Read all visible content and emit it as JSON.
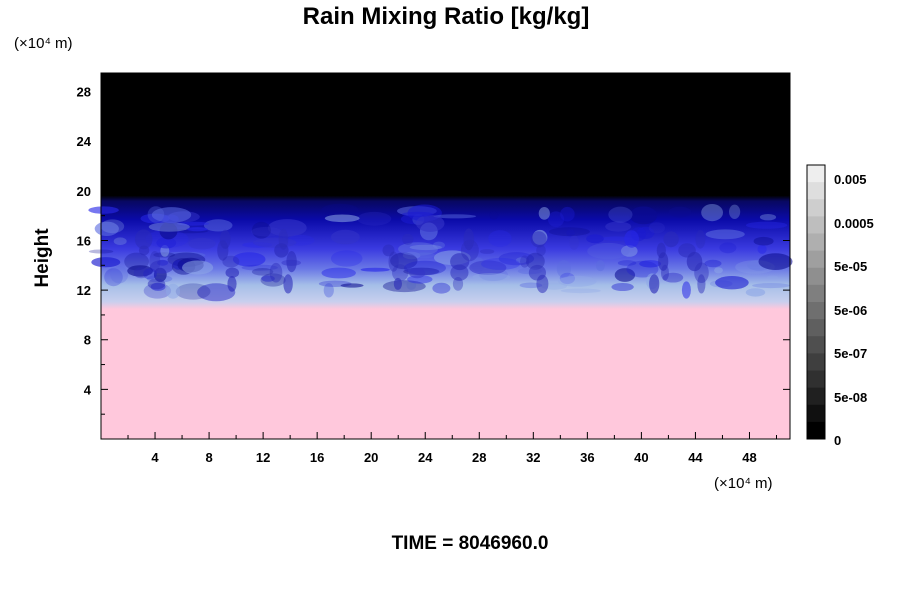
{
  "chart_data": {
    "type": "heatmap",
    "title": "Rain Mixing Ratio [kg/kg]",
    "ylabel": "Height",
    "y_unit": "(×10⁴ m)",
    "x_unit": "(×10⁴ m)",
    "x_ticks": [
      "4",
      "8",
      "12",
      "16",
      "20",
      "24",
      "28",
      "32",
      "36",
      "40",
      "44",
      "48"
    ],
    "x_tick_values": [
      4,
      8,
      12,
      16,
      20,
      24,
      28,
      32,
      36,
      40,
      44,
      48
    ],
    "y_ticks": [
      "4",
      "8",
      "12",
      "16",
      "20",
      "24",
      "28"
    ],
    "y_tick_values": [
      4,
      8,
      12,
      16,
      20,
      24,
      28
    ],
    "xlim": [
      0,
      51
    ],
    "ylim": [
      0,
      29.5
    ],
    "colorbar_labels": [
      "0.005",
      "0.0005",
      "5e-05",
      "5e-06",
      "5e-07",
      "5e-08",
      "0"
    ],
    "colorbar_levels": 16,
    "layers": [
      {
        "y_range": [
          0,
          10.8
        ],
        "color": "#ffc8dc"
      },
      {
        "y_range": [
          10.8,
          13.5
        ],
        "color": "#a6bfe8"
      },
      {
        "y_range": [
          13.5,
          16
        ],
        "color": "#3a3ae0"
      },
      {
        "y_range": [
          16,
          19.3
        ],
        "color": "#0a0aa8"
      },
      {
        "y_range": [
          19.3,
          29.5
        ],
        "color": "#000000"
      }
    ],
    "footer": "TIME = 8046960.0"
  },
  "colors": {
    "plot_background": "#000000",
    "surface_pink": "#ffc8dc",
    "light_blue": "#a6bfe8",
    "mid_blue": "#3a3ae0",
    "deep_blue": "#0a0aa8"
  }
}
